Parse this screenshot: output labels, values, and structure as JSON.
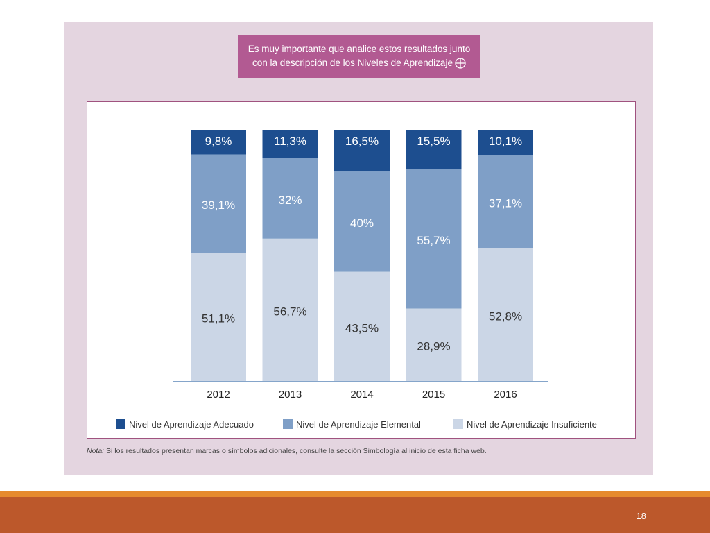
{
  "notice": {
    "line1": "Es muy importante que analice estos resultados junto",
    "line2": "con la descripción de los Niveles de Aprendizaje",
    "icon": "plus-circle-icon"
  },
  "note": {
    "label": "Nota:",
    "text": " Si los resultados presentan marcas o símbolos adicionales, consulte la sección Simbología al inicio de esta ficha web."
  },
  "page_number": "18",
  "colors": {
    "adecuado": "#1d4e8f",
    "elemental": "#7f9fc7",
    "insuficiente": "#cbd6e6",
    "notice_bg": "#b25a92",
    "footer": "#bc582b",
    "footer_stripe": "#e68a2e"
  },
  "chart_data": {
    "type": "bar",
    "stacked": true,
    "categories": [
      "2012",
      "2013",
      "2014",
      "2015",
      "2016"
    ],
    "series": [
      {
        "name": "Nivel de Aprendizaje Insuficiente",
        "values": [
          51.1,
          56.7,
          43.5,
          28.9,
          52.8
        ],
        "labels": [
          "51,1%",
          "56,7%",
          "43,5%",
          "28,9%",
          "52,8%"
        ],
        "color": "#cbd6e6"
      },
      {
        "name": "Nivel de Aprendizaje Elemental",
        "values": [
          39.1,
          32,
          40,
          55.7,
          37.1
        ],
        "labels": [
          "39,1%",
          "32%",
          "40%",
          "55,7%",
          "37,1%"
        ],
        "color": "#7f9fc7"
      },
      {
        "name": "Nivel de Aprendizaje Adecuado",
        "values": [
          9.8,
          11.3,
          16.5,
          15.5,
          10.1
        ],
        "labels": [
          "9,8%",
          "11,3%",
          "16,5%",
          "15,5%",
          "10,1%"
        ],
        "color": "#1d4e8f"
      }
    ],
    "legend_order": [
      "Nivel de Aprendizaje Adecuado",
      "Nivel de Aprendizaje Elemental",
      "Nivel de Aprendizaje Insuficiente"
    ],
    "legend_position": "bottom",
    "ylim": [
      0,
      100
    ],
    "grid": false
  }
}
